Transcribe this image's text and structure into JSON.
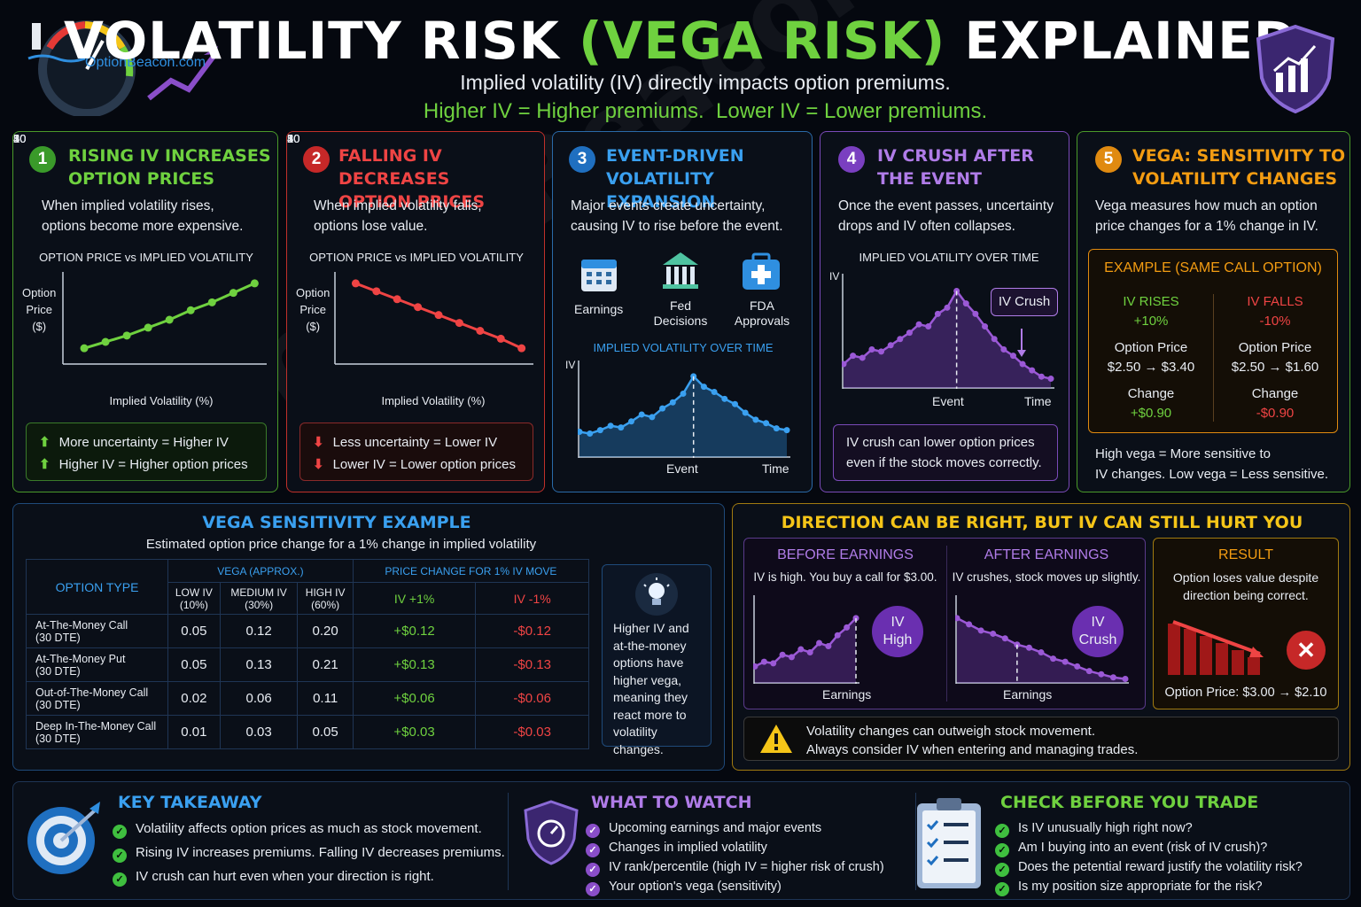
{
  "header": {
    "brand": "OptionBeacon.com",
    "title_a": "VOLATILITY RISK ",
    "title_b": "(VEGA RISK)",
    "title_c": " EXPLAINED",
    "subtitle1": "Implied volatility (IV) directly impacts option premiums.",
    "subtitle2": "Higher IV = Higher premiums.  Lower IV = Lower premiums."
  },
  "watermark": "OptionBeacon.com",
  "p1": {
    "num": "1",
    "title1": "RISING IV INCREASES",
    "title2": "OPTION PRICES",
    "desc1": "When implied volatility rises,",
    "desc2": "options become more expensive.",
    "chart_title": "OPTION PRICE vs IMPLIED VOLATILITY",
    "ylabel1": "Option",
    "ylabel2": "Price",
    "ylabel3": "($)",
    "xlabel": "Implied Volatility (%)",
    "b1": "More uncertainty = Higher IV",
    "b2": "Higher IV = Higher option prices"
  },
  "p2": {
    "num": "2",
    "title1": "FALLING IV DECREASES",
    "title2": "OPTION PRICES",
    "desc1": "When implied volatility falls,",
    "desc2": "options lose value.",
    "chart_title": "OPTION PRICE vs IMPLIED VOLATILITY",
    "ylabel1": "Option",
    "ylabel2": "Price",
    "ylabel3": "($)",
    "xlabel": "Implied Volatility (%)",
    "b1": "Less uncertainty = Lower IV",
    "b2": "Lower IV = Lower option prices"
  },
  "p3": {
    "num": "3",
    "title1": "EVENT-DRIVEN",
    "title2": "VOLATILITY EXPANSION",
    "desc1": "Major events create uncertainty,",
    "desc2": "causing IV to rise before the event.",
    "icon1": "Earnings",
    "icon2a": "Fed",
    "icon2b": "Decisions",
    "icon3a": "FDA",
    "icon3b": "Approvals",
    "chart_title": "IMPLIED VOLATILITY OVER TIME",
    "ylabel": "IV",
    "event": "Event",
    "time": "Time"
  },
  "p4": {
    "num": "4",
    "title1": "IV CRUSH AFTER",
    "title2": "THE EVENT",
    "desc1": "Once the event passes, uncertainty",
    "desc2": "drops and IV often collapses.",
    "chart_title": "IMPLIED VOLATILITY OVER TIME",
    "ylabel": "IV",
    "callout": "IV Crush",
    "event": "Event",
    "time": "Time",
    "note1": "IV crush can lower option prices",
    "note2": "even if the stock moves correctly."
  },
  "p5": {
    "num": "5",
    "title1": "VEGA: SENSITIVITY TO",
    "title2": "VOLATILITY CHANGES",
    "desc1": "Vega measures how much an option",
    "desc2": "price changes for a 1% change in IV.",
    "ex_title": "EXAMPLE (SAME CALL OPTION)",
    "rise": "IV RISES",
    "rise_pct": "+10%",
    "fall": "IV FALLS",
    "fall_pct": "-10%",
    "op": "Option Price",
    "rise_price": "$2.50 → $3.40",
    "fall_price": "$2.50 → $1.60",
    "change": "Change",
    "rise_chg": "+$0.90",
    "fall_chg": "-$0.90",
    "foot1": "High vega = More sensitive to",
    "foot2": "IV changes. Low vega = Less sensitive."
  },
  "table": {
    "title": "VEGA SENSITIVITY EXAMPLE",
    "subtitle": "Estimated option price change for a 1% change in implied volatility",
    "col_type": "OPTION TYPE",
    "col_vega": "VEGA (APPROX.)",
    "col_change": "PRICE CHANGE FOR 1% IV MOVE",
    "low1": "LOW IV",
    "low2": "(10%)",
    "med1": "MEDIUM IV",
    "med2": "(30%)",
    "high1": "HIGH IV",
    "high2": "(60%)",
    "up": "IV +1%",
    "down": "IV -1%",
    "rows": [
      {
        "n1": "At-The-Money Call",
        "n2": "(30 DTE)",
        "l": "0.05",
        "m": "0.12",
        "h": "0.20",
        "u": "+$0.12",
        "d": "-$0.12"
      },
      {
        "n1": "At-The-Money Put",
        "n2": "(30 DTE)",
        "l": "0.05",
        "m": "0.13",
        "h": "0.21",
        "u": "+$0.13",
        "d": "-$0.13"
      },
      {
        "n1": "Out-of-The-Money Call",
        "n2": "(30 DTE)",
        "l": "0.02",
        "m": "0.06",
        "h": "0.11",
        "u": "+$0.06",
        "d": "-$0.06"
      },
      {
        "n1": "Deep In-The-Money Call",
        "n2": "(30 DTE)",
        "l": "0.01",
        "m": "0.03",
        "h": "0.05",
        "u": "+$0.03",
        "d": "-$0.03"
      }
    ],
    "tip1": "Higher IV and",
    "tip2": "at-the-money",
    "tip3": "options have",
    "tip4": "higher vega,",
    "tip5": "meaning they",
    "tip6": "react more to",
    "tip7": "volatility changes."
  },
  "direction": {
    "title": "DIRECTION CAN BE RIGHT, BUT IV CAN STILL HURT YOU",
    "before_t": "BEFORE EARNINGS",
    "before_d": "IV is high. You buy a call for $3.00.",
    "badge1a": "IV",
    "badge1b": "High",
    "earn1": "Earnings",
    "after_t": "AFTER EARNINGS",
    "after_d": "IV crushes, stock moves up slightly.",
    "badge2a": "IV",
    "badge2b": "Crush",
    "earn2": "Earnings",
    "result_t": "RESULT",
    "result_d1": "Option loses value despite",
    "result_d2": "direction being correct.",
    "result_price": "Option Price: $3.00 → $2.10",
    "warn1": "Volatility changes can outweigh stock movement.",
    "warn2": "Always consider IV when entering and managing trades."
  },
  "key": {
    "title": "KEY TAKEAWAY",
    "i1": "Volatility affects option prices as much as stock movement.",
    "i2": "Rising IV increases premiums. Falling IV decreases premiums.",
    "i3": "IV crush can hurt even when your direction is right."
  },
  "watch": {
    "title": "WHAT TO WATCH",
    "i1": "Upcoming earnings and major events",
    "i2": "Changes in implied volatility",
    "i3": "IV rank/percentile (high IV = higher risk of crush)",
    "i4": "Your option's vega (sensitivity)"
  },
  "check": {
    "title": "CHECK BEFORE YOU TRADE",
    "i1": "Is IV unusually high right now?",
    "i2": "Am I buying into an event (risk of IV crush)?",
    "i3": "Does the petential reward justify the volatility risk?",
    "i4": "Is my position size appropriate for the risk?"
  },
  "colors": {
    "green": "#6fd13f",
    "red": "#e53935",
    "blue": "#2f8fe0",
    "purple": "#9b59d6",
    "orange": "#f39c12",
    "yellow": "#f5c518"
  },
  "chart_data": [
    {
      "type": "line",
      "title": "OPTION PRICE vs IMPLIED VOLATILITY",
      "xlabel": "Implied Volatility (%)",
      "ylabel": "Option Price ($)",
      "x_ticks": [
        10,
        20,
        30,
        40,
        50
      ],
      "x": [
        10,
        15,
        20,
        25,
        30,
        35,
        40,
        45,
        50
      ],
      "y": [
        1,
        1.4,
        1.8,
        2.3,
        2.8,
        3.4,
        3.9,
        4.5,
        5.1
      ],
      "trend": "increasing"
    },
    {
      "type": "line",
      "title": "OPTION PRICE vs IMPLIED VOLATILITY",
      "xlabel": "Implied Volatility (%)",
      "ylabel": "Option Price ($)",
      "x_ticks": [
        10,
        20,
        30,
        40,
        50
      ],
      "x": [
        10,
        15,
        20,
        25,
        30,
        35,
        40,
        45,
        50
      ],
      "y": [
        5.1,
        4.6,
        4.1,
        3.6,
        3.1,
        2.6,
        2.1,
        1.6,
        1.0
      ],
      "trend": "decreasing"
    },
    {
      "type": "area",
      "title": "IMPLIED VOLATILITY OVER TIME",
      "ylabel": "IV",
      "x_markers": [
        "Event",
        "Time"
      ],
      "shape": "rises before event then falls"
    },
    {
      "type": "area",
      "title": "IMPLIED VOLATILITY OVER TIME",
      "ylabel": "IV",
      "x_markers": [
        "Event",
        "Time"
      ],
      "annotation": "IV Crush",
      "shape": "rises to event then collapses"
    }
  ]
}
